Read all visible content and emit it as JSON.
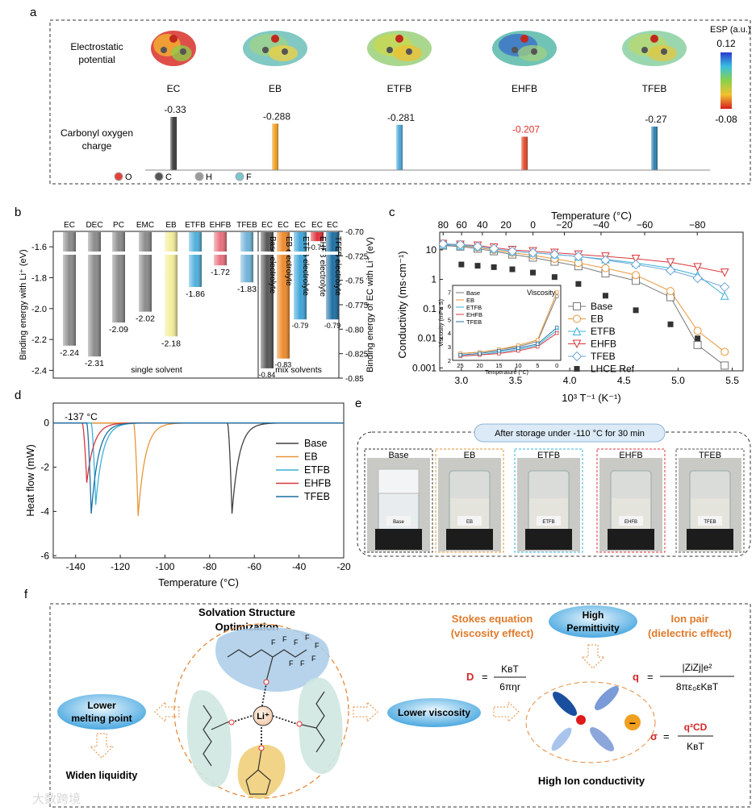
{
  "panel_labels": {
    "a": "a",
    "b": "b",
    "c": "c",
    "d": "d",
    "e": "e",
    "f": "f"
  },
  "panel_a": {
    "row1_label": [
      "Electrostatic",
      "potential"
    ],
    "row2_label": [
      "Carbonyl oxygen",
      "charge"
    ],
    "molecules": [
      "EC",
      "EB",
      "ETFB",
      "EHFB",
      "TFEB"
    ],
    "charges": [
      -0.33,
      -0.288,
      -0.281,
      -0.207,
      -0.27
    ],
    "charge_labels": [
      "-0.33",
      "-0.288",
      "-0.281",
      "-0.207",
      "-0.27"
    ],
    "bar_colors": [
      "#3a3a3a",
      "#f0a020",
      "#4aa6d6",
      "#e24a2a",
      "#2f7fb0"
    ],
    "charge_label_colors": [
      "#111111",
      "#111111",
      "#111111",
      "#e0302a",
      "#111111"
    ],
    "esp_title": "ESP (a.u.)",
    "esp_max": "0.12",
    "esp_min": "-0.08",
    "atom_legend": [
      {
        "symbol": "O",
        "color": "#e3413a"
      },
      {
        "symbol": "C",
        "color": "#555555"
      },
      {
        "symbol": "H",
        "color": "#9a9a9a"
      },
      {
        "symbol": "F",
        "color": "#7cc6cf"
      }
    ]
  },
  "chart_data": [
    {
      "panel": "b",
      "type": "bar",
      "ylabel_left": "Binding energy with Li⁺ (eV)",
      "ylabel_right": "Binding energy of EC with Li⁺ (eV)",
      "left_ylim": [
        -2.45,
        -1.5
      ],
      "left_ticks": [
        "-1.6",
        "-1.8",
        "-2.0",
        "-2.2",
        "-2.4"
      ],
      "right_ylim": [
        -0.85,
        -0.7
      ],
      "right_ticks": [
        "-0.70",
        "-0.725",
        "-0.75",
        "-0.775",
        "-0.80",
        "-0.825",
        "-0.85"
      ],
      "single_solvent": {
        "caption": "single solvent",
        "categories": [
          "EC",
          "DEC",
          "PC",
          "EMC",
          "EB",
          "ETFB",
          "EHFB",
          "TFEB"
        ],
        "values": [
          -2.24,
          -2.31,
          -2.09,
          -2.02,
          -2.18,
          -1.86,
          -1.72,
          -1.83
        ],
        "labels": [
          "-2.24",
          "-2.31",
          "-2.09",
          "-2.02",
          "-2.18",
          "-1.86",
          "-1.72",
          "-1.83"
        ],
        "colors": [
          "#8a8a8a",
          "#8a8a8a",
          "#8a8a8a",
          "#8a8a8a",
          "#f4ee9a",
          "#4fb0dc",
          "#e8707c",
          "#6fb3d8"
        ]
      },
      "mix_solvents": {
        "caption": "mix solvents",
        "categories": [
          "EC",
          "EC",
          "EC",
          "EC",
          "EC"
        ],
        "names": [
          "Base electrolyte",
          "EB electrolyte",
          "ETFB electrolyte",
          "EHFB electrolyte",
          "TFEB electrolyte"
        ],
        "values": [
          -0.84,
          -0.83,
          -0.79,
          -0.71,
          -0.79
        ],
        "labels": [
          "-0.84",
          "-0.83",
          "-0.79",
          "-0.71",
          "-0.79"
        ],
        "colors": [
          "#555555",
          "#ee8a2a",
          "#3ea4d8",
          "#e2303a",
          "#1d6fa3"
        ]
      }
    },
    {
      "panel": "c",
      "type": "line",
      "xlabel": "10³ T⁻¹ (K⁻¹)",
      "ylabel": "Conductivity (ms·cm⁻¹)",
      "top_xlabel": "Temperature (°C)",
      "xlim": [
        2.8,
        5.6
      ],
      "ylim_log10": [
        -3.1,
        1.6
      ],
      "x_ticks": [
        "3.0",
        "3.5",
        "4.0",
        "4.5",
        "5.0",
        "5.5"
      ],
      "y_ticks": [
        "10",
        "1",
        "0.1",
        "0.01",
        "0.001"
      ],
      "top_ticks": [
        "80",
        "60",
        "40",
        "20",
        "0",
        "−20",
        "−40",
        "−60",
        "−80"
      ],
      "series": [
        {
          "name": "Base",
          "marker": "square",
          "color": "#777777",
          "x": [
            2.83,
            2.99,
            3.15,
            3.3,
            3.47,
            3.66,
            3.86,
            4.08,
            4.33,
            4.61,
            4.93,
            5.18,
            5.43
          ],
          "values": [
            14,
            13,
            11,
            9,
            7,
            5.5,
            4,
            2.8,
            1.6,
            0.9,
            0.25,
            0.006,
            0.0012
          ]
        },
        {
          "name": "EB",
          "marker": "circle",
          "color": "#e7963a",
          "x": [
            2.83,
            2.99,
            3.15,
            3.3,
            3.47,
            3.66,
            3.86,
            4.08,
            4.33,
            4.61,
            4.93,
            5.18,
            5.43
          ],
          "values": [
            15,
            14,
            12,
            10,
            8,
            6.5,
            5,
            3.6,
            2.4,
            1.4,
            0.4,
            0.018,
            0.0035
          ]
        },
        {
          "name": "ETFB",
          "marker": "triangle-up",
          "color": "#3ab0d8",
          "x": [
            2.83,
            2.99,
            3.15,
            3.3,
            3.47,
            3.66,
            3.86,
            4.08,
            4.33,
            4.61,
            4.93,
            5.18,
            5.43
          ],
          "values": [
            15,
            14,
            13,
            11,
            9,
            8,
            7,
            6,
            4.8,
            3.6,
            2.4,
            1.4,
            0.28
          ]
        },
        {
          "name": "EHFB",
          "marker": "triangle-down",
          "color": "#d8373c",
          "x": [
            2.83,
            2.99,
            3.15,
            3.3,
            3.47,
            3.66,
            3.86,
            4.08,
            4.33,
            4.61,
            4.93,
            5.18,
            5.43
          ],
          "values": [
            16,
            15,
            14,
            12,
            10,
            9,
            8,
            7,
            6,
            5,
            3.8,
            2.6,
            1.7
          ]
        },
        {
          "name": "TFEB",
          "marker": "diamond",
          "color": "#6fa6d6",
          "x": [
            2.83,
            2.99,
            3.15,
            3.3,
            3.47,
            3.66,
            3.86,
            4.08,
            4.33,
            4.61,
            4.93,
            5.18,
            5.43
          ],
          "values": [
            16,
            15,
            13,
            11,
            9,
            8,
            7,
            6,
            4.5,
            3.2,
            2,
            1.1,
            0.55
          ]
        },
        {
          "name": "LHCE Ref",
          "marker": "filled-square",
          "color": "#333333",
          "x": [
            3.0,
            3.15,
            3.3,
            3.47,
            3.66,
            3.86,
            4.08,
            4.33,
            4.61,
            4.93,
            5.18
          ],
          "values": [
            3.2,
            2.9,
            2.6,
            2.2,
            1.7,
            1.2,
            0.7,
            0.28,
            0.09,
            0.03,
            0.01
          ]
        }
      ],
      "inset": {
        "title": "Viscosity",
        "ylabel": "Viscosity (mPa S)",
        "xlabel": "Temperature (°C)",
        "x_ticks": [
          "25",
          "20",
          "15",
          "10",
          "5",
          "0"
        ],
        "y_ticks": [
          "2",
          "3",
          "4",
          "5",
          "6",
          "7"
        ],
        "xlim": [
          27,
          -1
        ],
        "ylim": [
          2,
          7.5
        ],
        "series": [
          {
            "name": "Base",
            "color": "#777777",
            "x": [
              25,
              20,
              15,
              10,
              5,
              0
            ],
            "values": [
              2.5,
              2.6,
              2.8,
              3.0,
              3.4,
              6.7
            ]
          },
          {
            "name": "EB",
            "color": "#e7963a",
            "x": [
              25,
              20,
              15,
              10,
              5,
              0
            ],
            "values": [
              2.5,
              2.6,
              2.8,
              3.1,
              3.5,
              7.0
            ]
          },
          {
            "name": "ETFB",
            "color": "#3ab0d8",
            "x": [
              25,
              20,
              15,
              10,
              5,
              0
            ],
            "values": [
              2.3,
              2.4,
              2.6,
              2.8,
              3.1,
              4.2
            ]
          },
          {
            "name": "EHFB",
            "color": "#d8373c",
            "x": [
              25,
              20,
              15,
              10,
              5,
              0
            ],
            "values": [
              2.3,
              2.4,
              2.5,
              2.7,
              3.0,
              4.0
            ]
          },
          {
            "name": "TFEB",
            "color": "#1d6fa3",
            "x": [
              25,
              20,
              15,
              10,
              5,
              0
            ],
            "values": [
              2.4,
              2.5,
              2.7,
              2.9,
              3.2,
              4.4
            ]
          }
        ]
      }
    },
    {
      "panel": "d",
      "type": "line",
      "xlabel": "Temperature (°C)",
      "ylabel": "Heat flow (mW)",
      "annotation": "-137 °C",
      "xlim": [
        -150,
        -20
      ],
      "ylim": [
        -6.1,
        0.9
      ],
      "x_ticks": [
        "-140",
        "-120",
        "-100",
        "-80",
        "-60",
        "-40",
        "-20"
      ],
      "y_ticks": [
        "0",
        "-2",
        "-4",
        "-6"
      ],
      "series": [
        {
          "name": "Base",
          "color": "#404040",
          "peak_x": -70,
          "peak_y": -4.1,
          "onset": -72
        },
        {
          "name": "EB",
          "color": "#e7963a",
          "peak_x": -112,
          "peak_y": -4.2,
          "onset": -114
        },
        {
          "name": "ETFB",
          "color": "#3ab0d8",
          "peak_x": -131,
          "peak_y": -3.7,
          "onset": -133
        },
        {
          "name": "EHFB",
          "color": "#d8373c",
          "peak_x": -135,
          "peak_y": -2.7,
          "onset": -137
        },
        {
          "name": "TFEB",
          "color": "#1d6fa3",
          "peak_x": -133,
          "peak_y": -4.1,
          "onset": -135
        }
      ]
    }
  ],
  "panel_e": {
    "banner": "After storage under -110 °C for 30 min",
    "vials": [
      {
        "name": "Base",
        "label": "Base",
        "border": "#333333",
        "frozen": true
      },
      {
        "name": "EB",
        "label": "EB",
        "border": "#e7963a",
        "frozen": false
      },
      {
        "name": "ETFB",
        "label": "ETFB",
        "border": "#3ab0d8",
        "frozen": false
      },
      {
        "name": "EHFB",
        "label": "EHFB",
        "border": "#d8373c",
        "frozen": false
      },
      {
        "name": "TFEB",
        "label": "TFEB",
        "border": "#555555",
        "frozen": false
      }
    ]
  },
  "panel_f": {
    "title": [
      "Solvation Structure",
      "Optimization"
    ],
    "lower_melting": [
      "Lower",
      "melting point"
    ],
    "widen": "Widen liquidity",
    "lower_viscosity": "Lower viscosity",
    "high_permittivity": [
      "High",
      "Permittivity"
    ],
    "stokes": [
      "Stokes equation",
      "(viscosity effect)"
    ],
    "ion_pair": [
      "Ion pair",
      "(dielectric effect)"
    ],
    "eq_D": {
      "lhs": "D",
      "eq": "=",
      "num": "KʙT",
      "den": "6πηr"
    },
    "eq_q": {
      "lhs": "q",
      "eq": "=",
      "num": "|ZiZj|e²",
      "den": "8πε₀εKʙT"
    },
    "eq_sigma": {
      "lhs": "σ",
      "eq": "=",
      "num": "q²CD",
      "den": "KʙT"
    },
    "li_label": "Li⁺",
    "fluorine": "F",
    "conductivity": "High Ion conductivity",
    "minus": "−"
  },
  "watermark": "大数跨境"
}
